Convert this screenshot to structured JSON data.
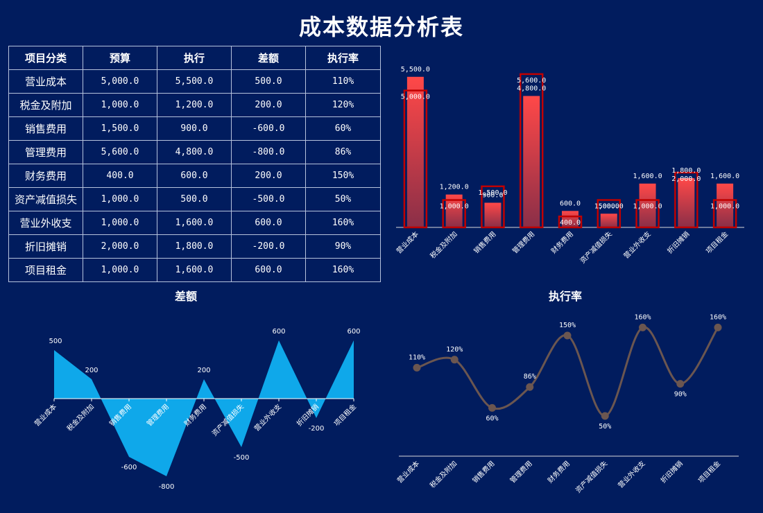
{
  "title": "成本数据分析表",
  "table": {
    "headers": [
      "项目分类",
      "预算",
      "执行",
      "差额",
      "执行率"
    ],
    "rows": [
      [
        "营业成本",
        "5,000.0",
        "5,500.0",
        "500.0",
        "110%"
      ],
      [
        "税金及附加",
        "1,000.0",
        "1,200.0",
        "200.0",
        "120%"
      ],
      [
        "销售费用",
        "1,500.0",
        "900.0",
        "-600.0",
        "60%"
      ],
      [
        "管理费用",
        "5,600.0",
        "4,800.0",
        "-800.0",
        "86%"
      ],
      [
        "财务费用",
        "400.0",
        "600.0",
        "200.0",
        "150%"
      ],
      [
        "资产减值损失",
        "1,000.0",
        "500.0",
        "-500.0",
        "50%"
      ],
      [
        "营业外收支",
        "1,000.0",
        "1,600.0",
        "600.0",
        "160%"
      ],
      [
        "折旧摊销",
        "2,000.0",
        "1,800.0",
        "-200.0",
        "90%"
      ],
      [
        "项目租金",
        "1,000.0",
        "1,600.0",
        "600.0",
        "160%"
      ]
    ]
  },
  "colors": {
    "background": "#011c5e",
    "bar_fill_top": "#ff4848",
    "bar_fill_bottom": "#8a2f48",
    "bar_outline": "#c00000",
    "area_fill": "#0fa8ea",
    "line_color": "#6b5650"
  },
  "chart_data": [
    {
      "type": "bar",
      "title": "",
      "categories": [
        "营业成本",
        "税金及附加",
        "销售费用",
        "管理费用",
        "财务费用",
        "资产减值损失",
        "营业外收支",
        "折旧摊销",
        "项目租金"
      ],
      "series": [
        {
          "name": "预算",
          "values": [
            5000,
            1000,
            1500,
            5600,
            400,
            1000,
            1000,
            2000,
            1000
          ],
          "style": "outline"
        },
        {
          "name": "执行",
          "values": [
            5500,
            1200,
            900,
            4800,
            600,
            500,
            1600,
            1800,
            1600
          ],
          "style": "filled"
        }
      ],
      "ylim": [
        0,
        6000
      ],
      "data_labels": "value (one decimal, thousands separator)"
    },
    {
      "type": "area",
      "title": "差额",
      "categories": [
        "营业成本",
        "税金及附加",
        "销售费用",
        "管理费用",
        "财务费用",
        "资产减值损失",
        "营业外收支",
        "折旧摊销",
        "项目租金"
      ],
      "values": [
        500,
        200,
        -600,
        -800,
        200,
        -500,
        600,
        -200,
        600
      ],
      "ylim": [
        -800,
        600
      ]
    },
    {
      "type": "line",
      "title": "执行率",
      "smooth": true,
      "categories": [
        "营业成本",
        "税金及附加",
        "销售费用",
        "管理费用",
        "财务费用",
        "资产减值损失",
        "营业外收支",
        "折旧摊销",
        "项目租金"
      ],
      "values": [
        110,
        120,
        60,
        86,
        150,
        50,
        160,
        90,
        160
      ],
      "unit": "%",
      "ylim": [
        50,
        160
      ]
    }
  ]
}
